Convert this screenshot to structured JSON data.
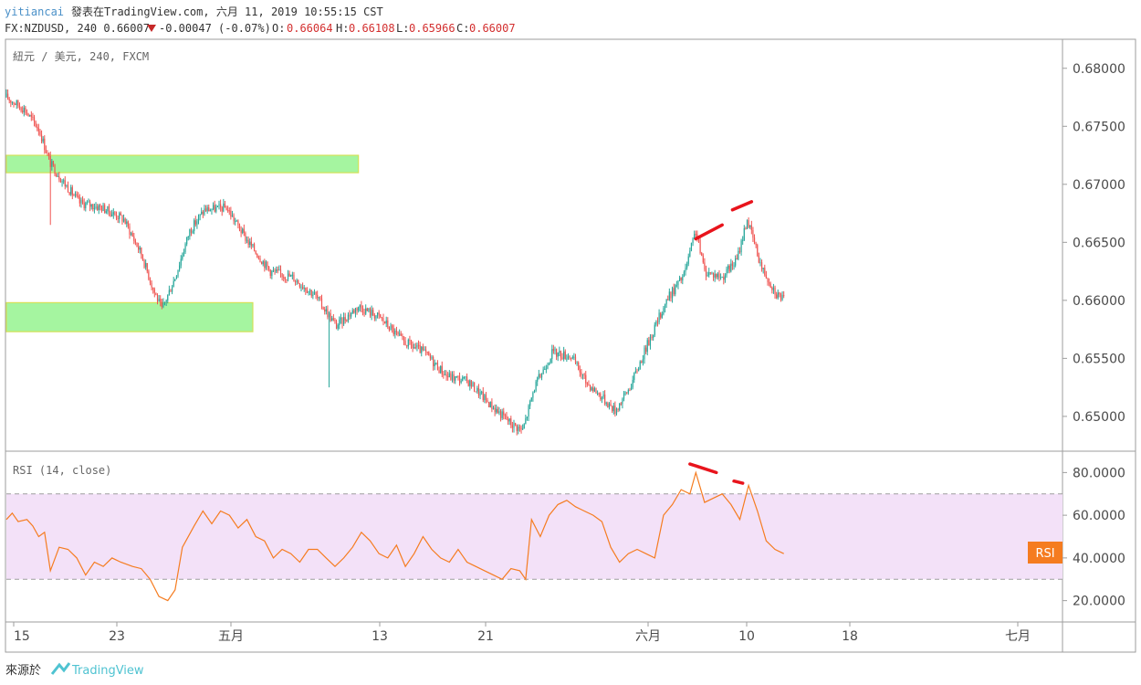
{
  "header": {
    "user": "yitiancai",
    "published": "發表在TradingView.com, 六月 11, 2019 10:55:15 CST",
    "symbol": "FX:NZDUSD, 240 0.66007",
    "change": "-0.00047 (-0.07%)",
    "o_label": "O:",
    "o_value": "0.66064",
    "h_label": "H:",
    "h_value": "0.66108",
    "l_label": "L:",
    "l_value": "0.65966",
    "c_label": "C:",
    "c_value": "0.66007"
  },
  "price_pane": {
    "label": "紐元 / 美元, 240, FXCM",
    "y_ticks": [
      "0.68000",
      "0.67500",
      "0.67000",
      "0.66500",
      "0.66000",
      "0.65500",
      "0.65000"
    ]
  },
  "rsi_pane": {
    "label": "RSI (14, close)",
    "y_ticks": [
      "80.0000",
      "60.0000",
      "40.0000",
      "20.0000"
    ],
    "badge": "RSI"
  },
  "x_axis": {
    "ticks": [
      "15",
      "23",
      "五月",
      "13",
      "21",
      "六月",
      "10",
      "18",
      "七月"
    ]
  },
  "footer": {
    "source_label": "來源於",
    "brand": "TradingView"
  },
  "colors": {
    "up": "#26a69a",
    "down": "#ef5350",
    "zone_fill": "#a5f5a0",
    "zone_stroke": "#d4e157",
    "rsi_line": "#f57c20",
    "rsi_band": "#f3e1f8",
    "annotation": "#e8141c",
    "badge": "#f57c20"
  },
  "chart_data": [
    {
      "type": "candlestick",
      "title": "紐元 / 美元, 240, FXCM",
      "ylim": [
        0.647,
        0.6825
      ],
      "x_labels": [
        "15",
        "23",
        "五月",
        "13",
        "21",
        "六月",
        "10",
        "18",
        "七月"
      ],
      "anchors": [
        {
          "x": 0,
          "price": 0.6775
        },
        {
          "x": 12,
          "price": 0.6765
        },
        {
          "x": 22,
          "price": 0.6748
        },
        {
          "x": 30,
          "price": 0.6718
        },
        {
          "x": 40,
          "price": 0.67
        },
        {
          "x": 50,
          "price": 0.6684
        },
        {
          "x": 65,
          "price": 0.668
        },
        {
          "x": 80,
          "price": 0.667
        },
        {
          "x": 92,
          "price": 0.664
        },
        {
          "x": 100,
          "price": 0.661
        },
        {
          "x": 106,
          "price": 0.6592
        },
        {
          "x": 115,
          "price": 0.662
        },
        {
          "x": 125,
          "price": 0.666
        },
        {
          "x": 135,
          "price": 0.6678
        },
        {
          "x": 150,
          "price": 0.668
        },
        {
          "x": 165,
          "price": 0.665
        },
        {
          "x": 180,
          "price": 0.6625
        },
        {
          "x": 195,
          "price": 0.662
        },
        {
          "x": 210,
          "price": 0.6605
        },
        {
          "x": 225,
          "price": 0.6578
        },
        {
          "x": 240,
          "price": 0.6595
        },
        {
          "x": 255,
          "price": 0.6585
        },
        {
          "x": 270,
          "price": 0.6565
        },
        {
          "x": 285,
          "price": 0.6555
        },
        {
          "x": 300,
          "price": 0.6535
        },
        {
          "x": 315,
          "price": 0.653
        },
        {
          "x": 330,
          "price": 0.651
        },
        {
          "x": 345,
          "price": 0.6493
        },
        {
          "x": 352,
          "price": 0.6488
        },
        {
          "x": 360,
          "price": 0.6525
        },
        {
          "x": 372,
          "price": 0.6555
        },
        {
          "x": 385,
          "price": 0.6552
        },
        {
          "x": 395,
          "price": 0.653
        },
        {
          "x": 405,
          "price": 0.6518
        },
        {
          "x": 415,
          "price": 0.6505
        },
        {
          "x": 425,
          "price": 0.6525
        },
        {
          "x": 438,
          "price": 0.6565
        },
        {
          "x": 450,
          "price": 0.66
        },
        {
          "x": 462,
          "price": 0.6622
        },
        {
          "x": 470,
          "price": 0.666
        },
        {
          "x": 476,
          "price": 0.6625
        },
        {
          "x": 488,
          "price": 0.662
        },
        {
          "x": 498,
          "price": 0.6635
        },
        {
          "x": 505,
          "price": 0.667
        },
        {
          "x": 515,
          "price": 0.6628
        },
        {
          "x": 525,
          "price": 0.6606
        },
        {
          "x": 530,
          "price": 0.6601
        }
      ],
      "spikes": [
        {
          "x": 30,
          "price": 0.6665
        },
        {
          "x": 220,
          "price": 0.6525
        }
      ],
      "zones": [
        {
          "x_from": 0,
          "x_to": 240,
          "price_top": 0.6725,
          "price_bottom": 0.671
        },
        {
          "x_from": 0,
          "x_to": 168,
          "price_top": 0.6598,
          "price_bottom": 0.6573
        }
      ],
      "annotations": [
        {
          "x1": 470,
          "price1": 0.6653,
          "x2": 488,
          "price2": 0.6665
        },
        {
          "x1": 495,
          "price1": 0.6678,
          "x2": 508,
          "price2": 0.6685
        }
      ]
    },
    {
      "type": "line",
      "title": "RSI (14, close)",
      "ylim": [
        10,
        90
      ],
      "band": [
        30,
        70
      ],
      "points": [
        [
          0,
          58
        ],
        [
          4,
          61
        ],
        [
          8,
          57
        ],
        [
          14,
          58
        ],
        [
          18,
          55
        ],
        [
          22,
          50
        ],
        [
          26,
          52
        ],
        [
          30,
          34
        ],
        [
          36,
          45
        ],
        [
          42,
          44
        ],
        [
          48,
          40
        ],
        [
          54,
          32
        ],
        [
          60,
          38
        ],
        [
          66,
          36
        ],
        [
          72,
          40
        ],
        [
          78,
          38
        ],
        [
          86,
          36
        ],
        [
          92,
          35
        ],
        [
          98,
          30
        ],
        [
          104,
          22
        ],
        [
          110,
          20
        ],
        [
          115,
          25
        ],
        [
          120,
          45
        ],
        [
          128,
          55
        ],
        [
          134,
          62
        ],
        [
          140,
          56
        ],
        [
          146,
          62
        ],
        [
          152,
          60
        ],
        [
          158,
          54
        ],
        [
          164,
          58
        ],
        [
          170,
          50
        ],
        [
          176,
          48
        ],
        [
          182,
          40
        ],
        [
          188,
          44
        ],
        [
          194,
          42
        ],
        [
          200,
          38
        ],
        [
          206,
          44
        ],
        [
          212,
          44
        ],
        [
          218,
          40
        ],
        [
          224,
          36
        ],
        [
          230,
          40
        ],
        [
          236,
          45
        ],
        [
          242,
          52
        ],
        [
          248,
          48
        ],
        [
          254,
          42
        ],
        [
          260,
          40
        ],
        [
          266,
          46
        ],
        [
          272,
          36
        ],
        [
          278,
          42
        ],
        [
          284,
          50
        ],
        [
          290,
          44
        ],
        [
          296,
          40
        ],
        [
          302,
          38
        ],
        [
          308,
          44
        ],
        [
          314,
          38
        ],
        [
          320,
          36
        ],
        [
          326,
          34
        ],
        [
          332,
          32
        ],
        [
          338,
          30
        ],
        [
          344,
          35
        ],
        [
          350,
          34
        ],
        [
          354,
          30
        ],
        [
          358,
          58
        ],
        [
          364,
          50
        ],
        [
          370,
          60
        ],
        [
          376,
          65
        ],
        [
          382,
          67
        ],
        [
          388,
          64
        ],
        [
          394,
          62
        ],
        [
          400,
          60
        ],
        [
          406,
          57
        ],
        [
          412,
          45
        ],
        [
          418,
          38
        ],
        [
          424,
          42
        ],
        [
          430,
          44
        ],
        [
          436,
          42
        ],
        [
          442,
          40
        ],
        [
          448,
          60
        ],
        [
          454,
          65
        ],
        [
          460,
          72
        ],
        [
          466,
          70
        ],
        [
          470,
          80
        ],
        [
          476,
          66
        ],
        [
          482,
          68
        ],
        [
          488,
          70
        ],
        [
          494,
          65
        ],
        [
          500,
          58
        ],
        [
          506,
          74
        ],
        [
          512,
          62
        ],
        [
          518,
          48
        ],
        [
          524,
          44
        ],
        [
          530,
          42
        ]
      ],
      "annotations": [
        {
          "x1": 466,
          "y1": 84,
          "x2": 484,
          "y2": 80
        },
        {
          "x1": 496,
          "y1": 76,
          "x2": 502,
          "y2": 75
        }
      ],
      "x_max": 720
    }
  ]
}
